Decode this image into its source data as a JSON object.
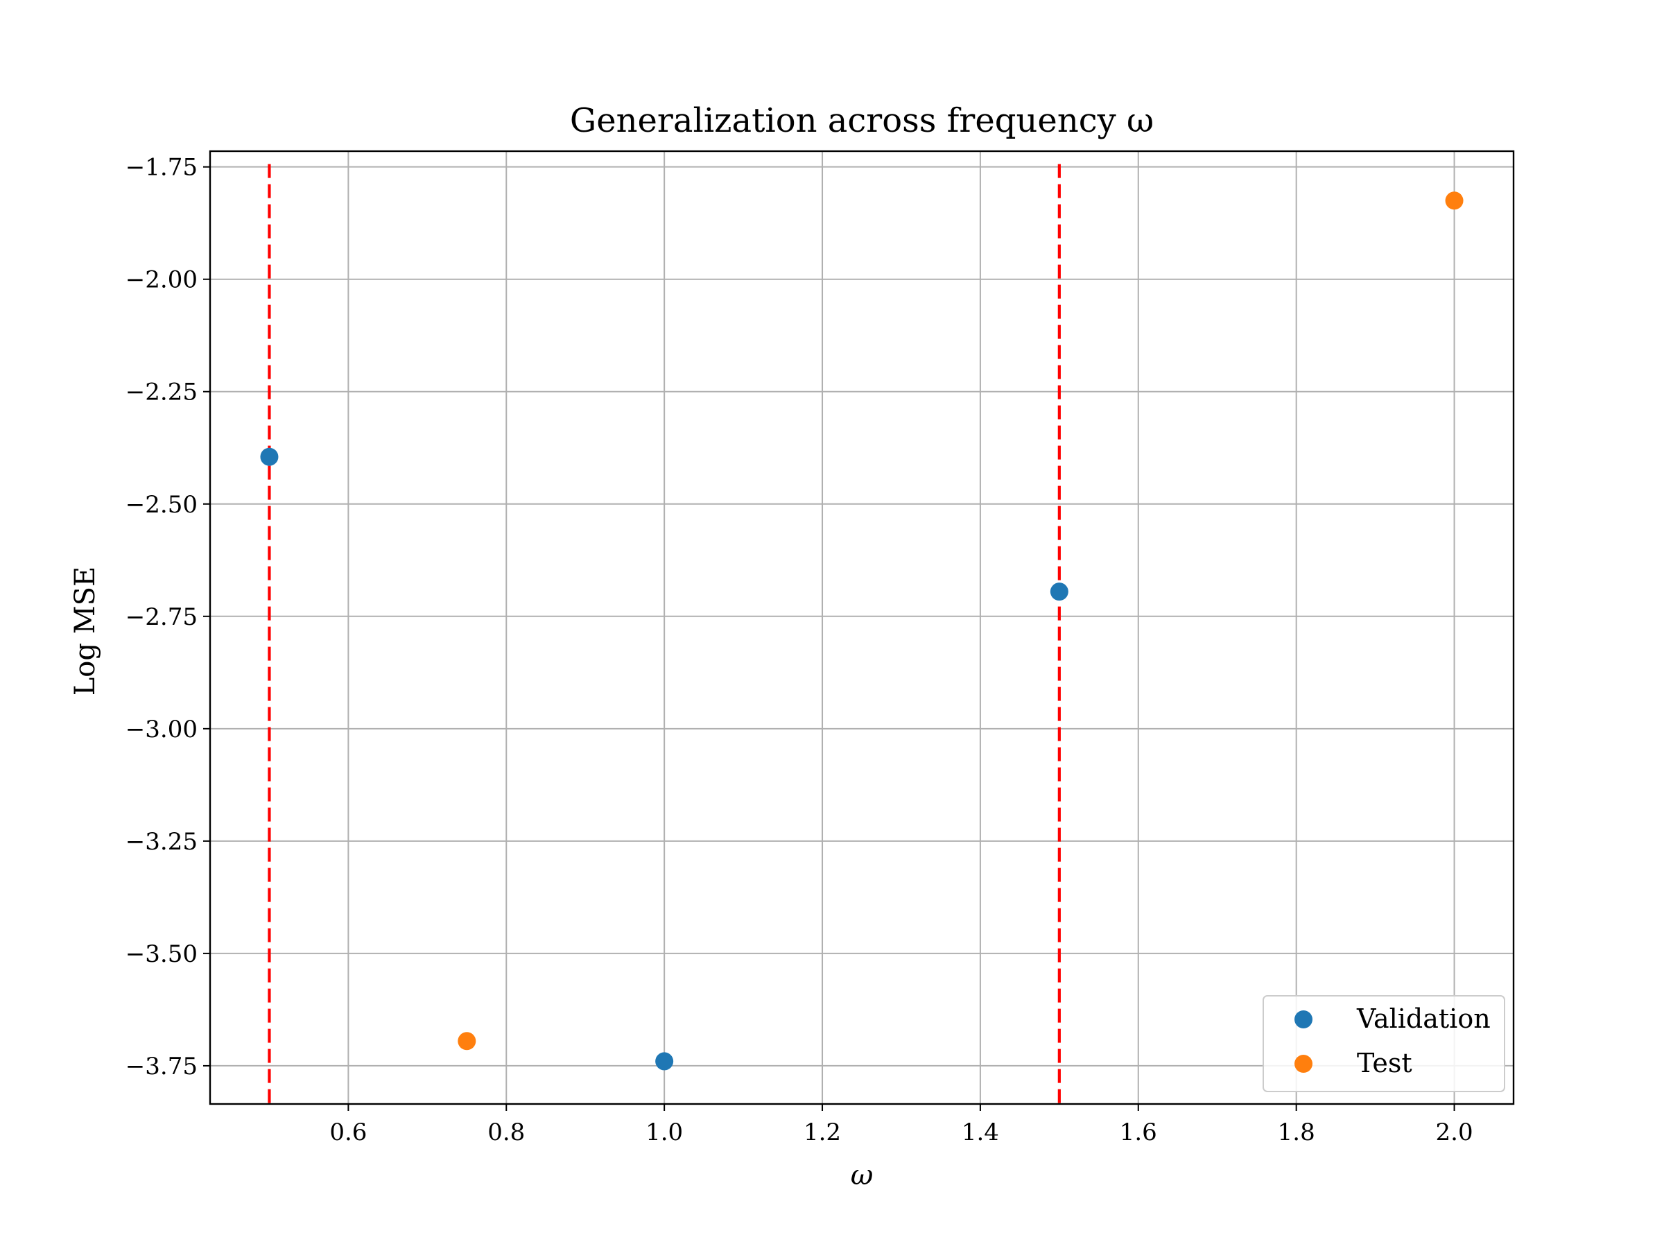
{
  "chart_data": {
    "type": "scatter",
    "title": "Generalization across frequency ω",
    "xlabel": "ω",
    "ylabel": "Log MSE",
    "xlim": [
      0.425,
      2.075
    ],
    "ylim": [
      -3.835,
      -1.715
    ],
    "xticks": [
      0.6,
      0.8,
      1.0,
      1.2,
      1.4,
      1.6,
      1.8,
      2.0
    ],
    "xtick_labels": [
      "0.6",
      "0.8",
      "1.0",
      "1.2",
      "1.4",
      "1.6",
      "1.8",
      "2.0"
    ],
    "yticks": [
      -1.75,
      -2.0,
      -2.25,
      -2.5,
      -2.75,
      -3.0,
      -3.25,
      -3.5,
      -3.75
    ],
    "ytick_labels": [
      "−1.75",
      "−2.00",
      "−2.25",
      "−2.50",
      "−2.75",
      "−3.00",
      "−3.25",
      "−3.50",
      "−3.75"
    ],
    "grid": true,
    "legend_position": "bottom-right",
    "series": [
      {
        "name": "Validation",
        "color": "#1f77b4",
        "points": [
          [
            0.5,
            -2.395
          ],
          [
            1.0,
            -3.74
          ],
          [
            1.5,
            -2.695
          ]
        ]
      },
      {
        "name": "Test",
        "color": "#ff7f0e",
        "points": [
          [
            0.75,
            -3.695
          ],
          [
            2.0,
            -1.825
          ]
        ]
      }
    ],
    "vlines": {
      "x": [
        0.5,
        1.5
      ],
      "color": "#ff0000",
      "style": "dashed"
    }
  }
}
